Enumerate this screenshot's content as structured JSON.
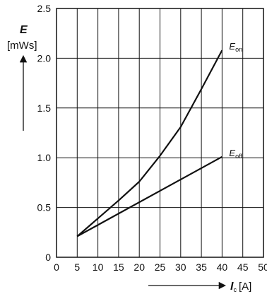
{
  "chart_data": {
    "type": "line",
    "title": "",
    "x_axis": {
      "symbol": "I",
      "subscript": "c",
      "unit": "[A]",
      "range": [
        0,
        50
      ],
      "ticks": [
        0,
        5,
        10,
        15,
        20,
        25,
        30,
        35,
        40,
        45,
        50
      ],
      "tick_labels": [
        "0",
        "5",
        "10",
        "15",
        "20",
        "25",
        "30",
        "35",
        "40",
        "45",
        "50"
      ]
    },
    "y_axis": {
      "symbol": "E",
      "unit": "[mWs]",
      "range": [
        0,
        2.5
      ],
      "ticks": [
        0,
        0.5,
        1.0,
        1.5,
        2.0,
        2.5
      ],
      "tick_labels": [
        "0",
        "0.5",
        "1.0",
        "1.5",
        "2.0",
        "2.5"
      ]
    },
    "grid": true,
    "series": [
      {
        "name_main": "E",
        "name_sub": "on",
        "points": [
          [
            5,
            0.21
          ],
          [
            10,
            0.39
          ],
          [
            15,
            0.57
          ],
          [
            20,
            0.76
          ],
          [
            25,
            1.02
          ],
          [
            30,
            1.31
          ],
          [
            35,
            1.69
          ],
          [
            40,
            2.08
          ]
        ]
      },
      {
        "name_main": "E",
        "name_sub": "off",
        "points": [
          [
            5,
            0.21
          ],
          [
            40,
            1.01
          ]
        ]
      }
    ]
  }
}
